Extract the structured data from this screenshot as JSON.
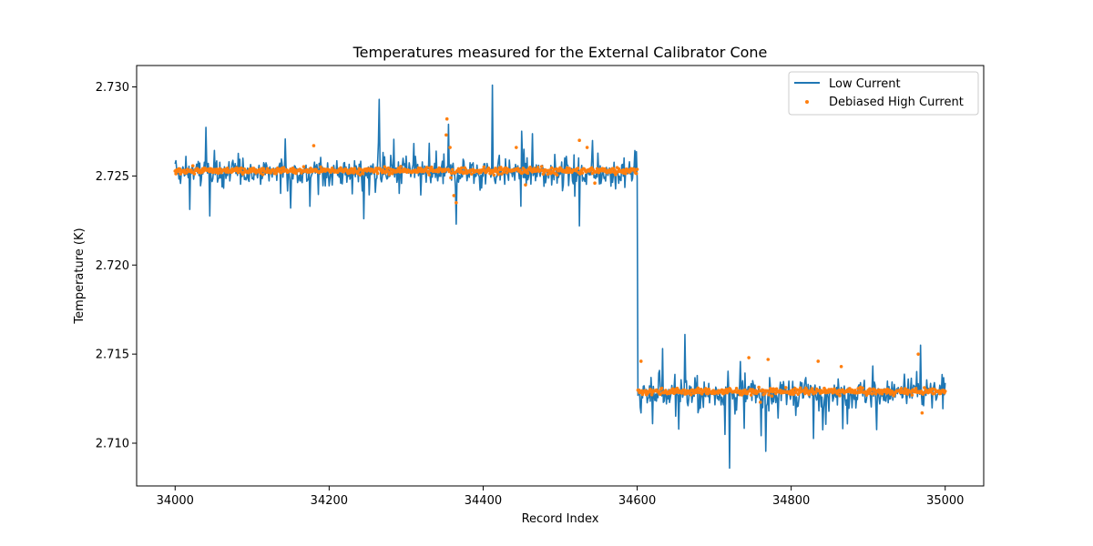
{
  "chart_data": {
    "type": "line",
    "title": "Temperatures measured for the External Calibrator Cone",
    "xlabel": "Record Index",
    "ylabel": "Temperature (K)",
    "xlim": [
      33950,
      35050
    ],
    "ylim": [
      2.7076,
      2.7312
    ],
    "xticks": [
      34000,
      34200,
      34400,
      34600,
      34800,
      35000
    ],
    "yticks": [
      2.71,
      2.715,
      2.72,
      2.725,
      2.73
    ],
    "xtick_labels": [
      "34000",
      "34200",
      "34400",
      "34600",
      "34800",
      "35000"
    ],
    "ytick_labels": [
      "2.710",
      "2.715",
      "2.720",
      "2.725",
      "2.730"
    ],
    "grid": false,
    "legend_position": "top-right",
    "series": [
      {
        "name": "Low Current",
        "style": "line",
        "color": "#1f77b4",
        "segments": [
          {
            "x_start": 34000,
            "x_end": 34600,
            "baseline": 2.7252,
            "noise": 0.0006,
            "spikes": [
              [
                34265,
                2.7293
              ],
              [
                34412,
                2.7301
              ],
              [
                34355,
                2.7279
              ],
              [
                34365,
                2.7223
              ],
              [
                34245,
                2.7226
              ],
              [
                34525,
                2.7222
              ],
              [
                34150,
                2.7232
              ],
              [
                34175,
                2.7233
              ]
            ]
          },
          {
            "x_start": 34601,
            "x_end": 35000,
            "baseline": 2.7128,
            "noise": 0.0007,
            "spikes": [
              [
                34662,
                2.7161
              ],
              [
                34720,
                2.7086
              ],
              [
                34968,
                2.7155
              ],
              [
                34605,
                2.7117
              ]
            ]
          }
        ]
      },
      {
        "name": "Debiased High Current",
        "style": "scatter",
        "color": "#ff7f0e",
        "segments": [
          {
            "x_start": 34000,
            "x_end": 34600,
            "baseline": 2.7253,
            "noise": 0.00015,
            "spikes": [
              [
                34353,
                2.7282
              ],
              [
                34352,
                2.7273
              ],
              [
                34357,
                2.7266
              ],
              [
                34358,
                2.7249
              ],
              [
                34362,
                2.7239
              ],
              [
                34365,
                2.7235
              ],
              [
                34525,
                2.727
              ],
              [
                34535,
                2.7266
              ],
              [
                34443,
                2.7266
              ],
              [
                34455,
                2.7245
              ],
              [
                34180,
                2.7267
              ],
              [
                34545,
                2.7246
              ]
            ]
          },
          {
            "x_start": 34601,
            "x_end": 35000,
            "baseline": 2.7129,
            "noise": 0.00015,
            "spikes": [
              [
                34605,
                2.7146
              ],
              [
                34745,
                2.7148
              ],
              [
                34770,
                2.7147
              ],
              [
                34835,
                2.7146
              ],
              [
                34965,
                2.715
              ],
              [
                34970,
                2.7117
              ],
              [
                34760,
                2.7123
              ],
              [
                34865,
                2.7143
              ]
            ]
          }
        ]
      }
    ]
  }
}
